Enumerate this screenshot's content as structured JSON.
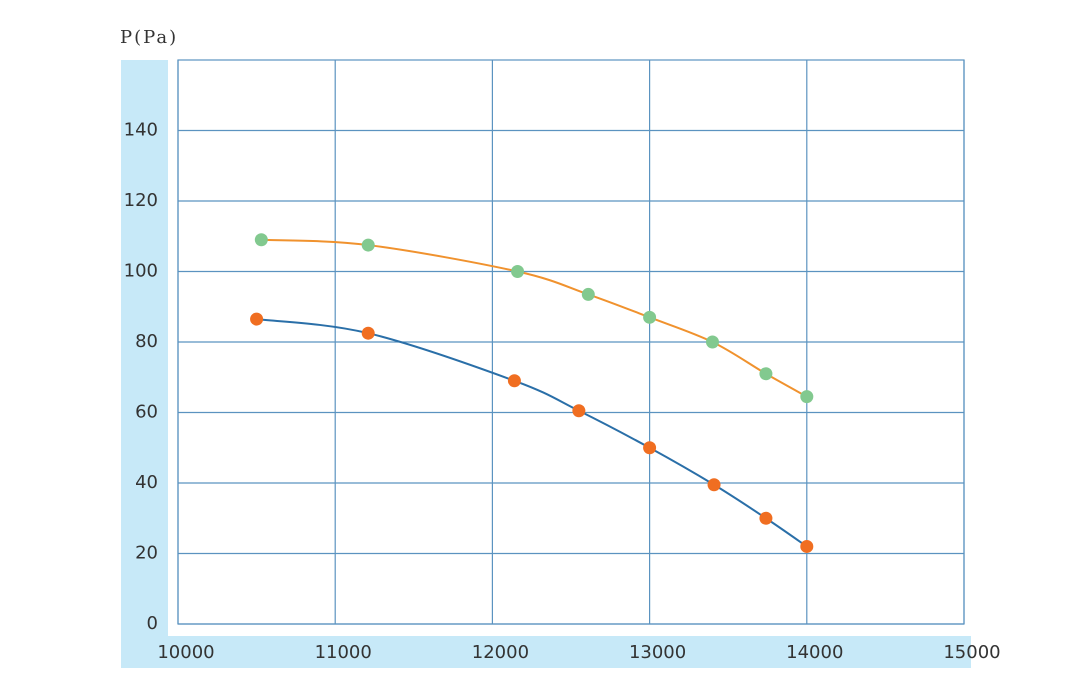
{
  "chart_data": {
    "type": "line",
    "y_label": "P(Pa)",
    "xlim": [
      10000,
      15000
    ],
    "xticks": [
      10000,
      11000,
      12000,
      13000,
      14000,
      15000
    ],
    "ylim": [
      0,
      160
    ],
    "yticks": [
      0,
      20,
      40,
      60,
      80,
      100,
      120,
      140
    ],
    "grid": true,
    "series": [
      {
        "line_color": "#f0922e",
        "marker_color": "#82c98f",
        "x": [
          10530,
          11210,
          12160,
          12610,
          13000,
          13400,
          13740,
          14000
        ],
        "values": [
          109,
          107.5,
          100,
          93.5,
          87,
          80,
          71,
          64.5
        ]
      },
      {
        "line_color": "#2a6fa8",
        "marker_color": "#f06e21",
        "x": [
          10500,
          11210,
          12140,
          12550,
          13000,
          13410,
          13740,
          14000
        ],
        "values": [
          86.5,
          82.5,
          69,
          60.5,
          50,
          39.5,
          30,
          22
        ]
      }
    ]
  }
}
